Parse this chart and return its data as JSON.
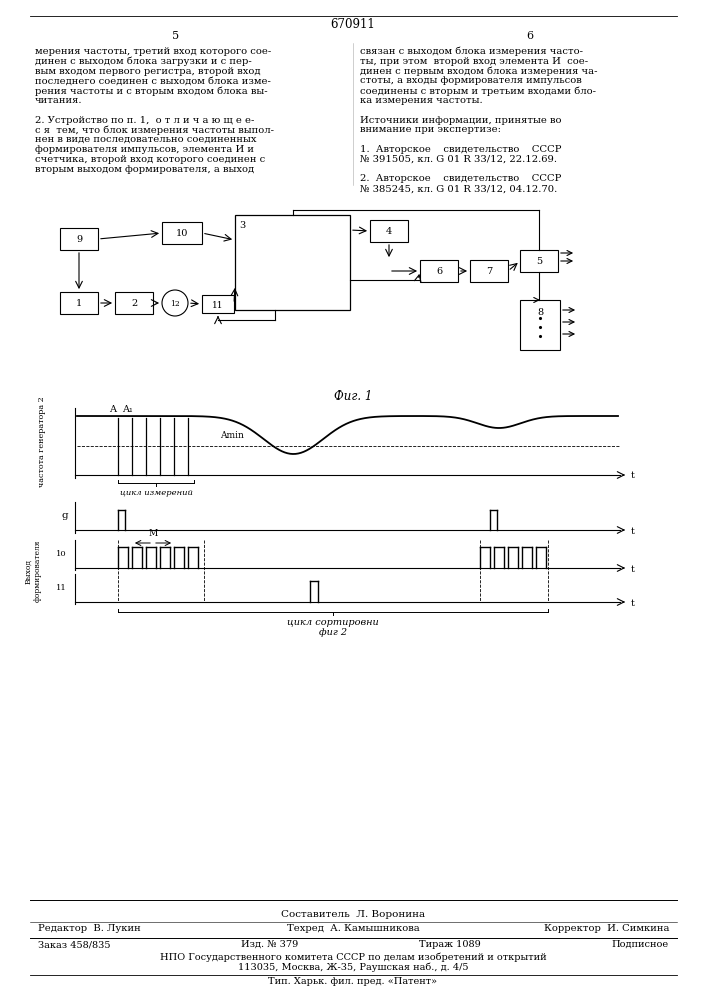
{
  "patent_number": "670911",
  "page_left": "5",
  "page_right": "6",
  "col_left_text": [
    "мерения частоты, третий вход которого сое-",
    "динен с выходом блока загрузки и с пер-",
    "вым входом первого регистра, второй вход",
    "последнего соединен с выходом блока изме-",
    "рения частоты и с вторым входом блока вы-",
    "читания.",
    "",
    "2. Устройство по п. 1,  о т л и ч а ю щ е е-",
    "с я  тем, что блок измерения частоты выпол-",
    "нен в виде последовательно соединенных",
    "формирователя импульсов, элемента И и",
    "счетчика, второй вход которого соединен с",
    "вторым выходом формирователя, а выход"
  ],
  "col_right_text_line1": "связан с выходом блока измерения часто-",
  "col_right_text_line2": "ты, при этом  второй вход элемента И  сое-",
  "col_right_text_line3": "динен с первым входом блока измерения ча-",
  "col_right_text_line4": "стоты, а входы формирователя импульсов",
  "col_right_text_line5": "соединены с вторым и третьим входами бло-",
  "col_right_text_line6": "ка измерения частоты.",
  "col_right_text_line8": "Источники информации, принятые во",
  "col_right_text_line9": "внимание при экспертизе:",
  "col_right_text_line11": "1.  Авторское    свидетельство    СССР",
  "col_right_text_line12": "№ 391505, кл. G 01 R 33/12, 22.12.69.",
  "col_right_text_line14": "2.  Авторское    свидетельство    СССР",
  "col_right_text_line15": "№ 385245, кл. G 01 R 33/12, 04.12.70.",
  "fig1_label": "Фиг. 1",
  "cycle_meas_label": "цикл измерений",
  "cycle_sort_label": "цикл сортировни",
  "fig2_sublabel": "фиг 2",
  "label_g": "g",
  "label_t": "t",
  "label_A": "A",
  "label_A1": "A₁",
  "label_Amin": "Amin",
  "label_M": "М",
  "label_10": "10",
  "label_11": "11",
  "footer_line1": "Составитель  Л. Воронина",
  "footer_editor": "Редактор  В. Лукин",
  "footer_techred": "Техред  А. Камышникова",
  "footer_corrector": "Корректор  И. Симкина",
  "footer_order": "Заказ 458/835",
  "footer_izd": "Изд. № 379",
  "footer_tirazh": "Тираж 1089",
  "footer_podpis": "Подписное",
  "footer_npo": "НПО Государственного комитета СССР по делам изобретений и открытий",
  "footer_address": "113035, Москва, Ж-35, Раушская наб., д. 4/5",
  "footer_tip": "Тип. Харьк. фил. пред. «Патент»"
}
